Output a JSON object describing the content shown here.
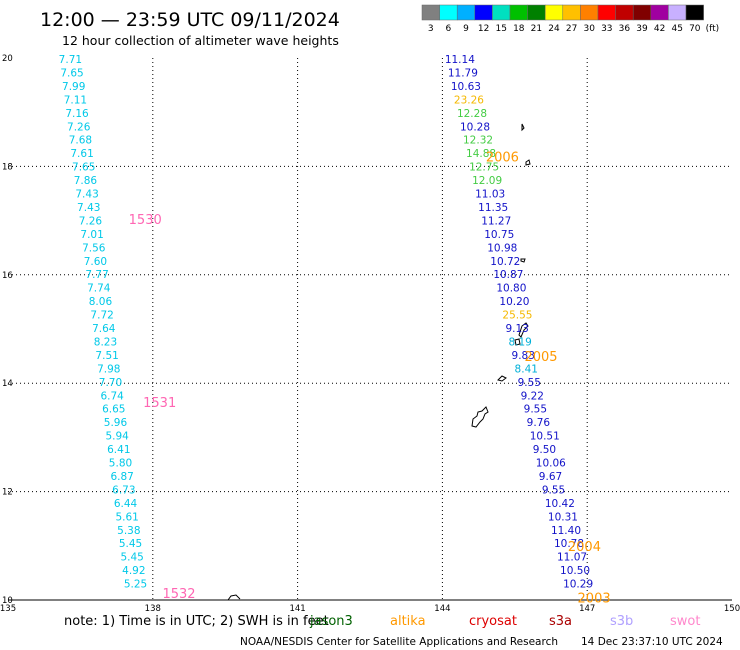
{
  "header": {
    "title": "12:00 — 23:59 UTC 09/11/2024",
    "subtitle": "12 hour collection of altimeter wave heights"
  },
  "legend": {
    "labels": [
      "3",
      "6",
      "9",
      "12",
      "15",
      "18",
      "21",
      "24",
      "27",
      "30",
      "33",
      "36",
      "39",
      "42",
      "45",
      "70",
      "(ft)"
    ],
    "colors": [
      "#808080",
      "#00ffff",
      "#00b0ff",
      "#0000ff",
      "#00e0c0",
      "#00c000",
      "#008000",
      "#ffff00",
      "#ffc000",
      "#ff8000",
      "#ff0000",
      "#c00000",
      "#800000",
      "#a000a0",
      "#c8b0ff",
      "#000000"
    ]
  },
  "footer": {
    "note": "note: 1) Time is in UTC; 2) SWH is in feet",
    "satellites": [
      {
        "name": "jason3",
        "color": "#006000"
      },
      {
        "name": "altika",
        "color": "#ff9900"
      },
      {
        "name": "cryosat",
        "color": "#dd0000"
      },
      {
        "name": "s3a",
        "color": "#aa0000"
      },
      {
        "name": "s3b",
        "color": "#b0a0ff"
      },
      {
        "name": "swot",
        "color": "#ff88cc"
      }
    ],
    "credit": "NOAA/NESDIS Center for Satellite Applications and Research",
    "timestamp": "14 Dec 23:37:10 UTC 2024"
  },
  "chart_data": {
    "type": "scatter",
    "xlim": [
      135,
      150
    ],
    "ylim": [
      10,
      20
    ],
    "x_ticks": [
      135,
      138,
      141,
      144,
      147,
      150
    ],
    "y_ticks": [
      10,
      12,
      14,
      16,
      18,
      20
    ],
    "grid": true,
    "tracks": [
      {
        "x0": 136.05,
        "x1": 137.4,
        "color": "#00c8e8",
        "values": [
          "7.71",
          "7.65",
          "7.99",
          "7.11",
          "7.16",
          "7.26",
          "7.68",
          "7.61",
          "7.65",
          "7.86",
          "7.43",
          "7.43",
          "7.26",
          "7.01",
          "7.56",
          "7.60",
          "7.77",
          "7.74",
          "8.06",
          "7.72",
          "7.64",
          "8.23",
          "7.51",
          "7.98",
          "7.70",
          "6.74",
          "6.65",
          "5.96",
          "5.94",
          "6.41",
          "5.80",
          "6.87",
          "6.73",
          "6.44",
          "5.61",
          "5.38",
          "5.45",
          "5.45",
          "4.92",
          "5.25"
        ],
        "times": [
          {
            "label": "1530",
            "x": 137.5,
            "y": 17.03,
            "color": "#ff66b3"
          },
          {
            "label": "1531",
            "x": 137.8,
            "y": 13.65,
            "color": "#ff66b3"
          },
          {
            "label": "1532",
            "x": 138.2,
            "y": 10.13,
            "color": "#ff66b3"
          }
        ]
      },
      {
        "x0": 144.05,
        "x1": 146.5,
        "values": [
          "11.14",
          "11.79",
          "10.63",
          "23.26",
          "12.28",
          "10.28",
          "12.32",
          "14.88",
          "12.75",
          "12.09",
          "11.03",
          "11.35",
          "11.27",
          "10.75",
          "10.98",
          "10.72",
          "10.87",
          "10.80",
          "10.20",
          "25.55",
          "9.13",
          "8.19",
          "9.83",
          "8.41",
          "9.55",
          "9.22",
          "9.55",
          "9.76",
          "10.51",
          "9.50",
          "10.06",
          "9.67",
          "9.55",
          "10.42",
          "10.31",
          "11.40",
          "10.78",
          "11.07",
          "10.50",
          "10.29"
        ],
        "times": [
          {
            "label": "2006",
            "x": 144.9,
            "y": 18.18,
            "color": "#ff9900"
          },
          {
            "label": "2005",
            "x": 145.7,
            "y": 14.5,
            "color": "#ff9900"
          },
          {
            "label": "2004",
            "x": 146.6,
            "y": 11.0,
            "color": "#ff9900"
          },
          {
            "label": "2003",
            "x": 146.8,
            "y": 10.05,
            "color": "#ff9900"
          }
        ]
      }
    ]
  }
}
